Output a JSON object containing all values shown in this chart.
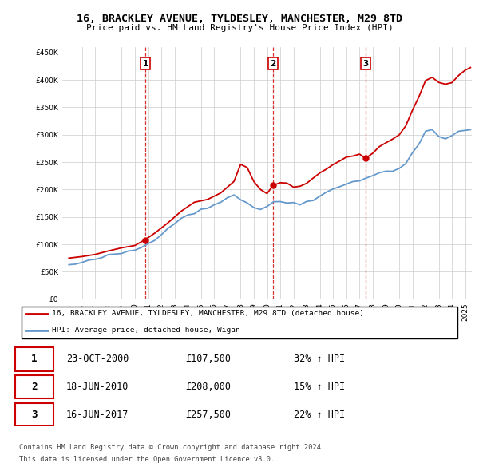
{
  "title": "16, BRACKLEY AVENUE, TYLDESLEY, MANCHESTER, M29 8TD",
  "subtitle": "Price paid vs. HM Land Registry's House Price Index (HPI)",
  "legend_line1": "16, BRACKLEY AVENUE, TYLDESLEY, MANCHESTER, M29 8TD (detached house)",
  "legend_line2": "HPI: Average price, detached house, Wigan",
  "transactions": [
    {
      "num": 1,
      "date": "23-OCT-2000",
      "price": 107500,
      "pct": "32%",
      "dir": "↑"
    },
    {
      "num": 2,
      "date": "18-JUN-2010",
      "price": 208000,
      "pct": "15%",
      "dir": "↑"
    },
    {
      "num": 3,
      "date": "16-JUN-2017",
      "price": 257500,
      "pct": "22%",
      "dir": "↑"
    }
  ],
  "footer1": "Contains HM Land Registry data © Crown copyright and database right 2024.",
  "footer2": "This data is licensed under the Open Government Licence v3.0.",
  "property_color": "#cc0000",
  "hpi_color": "#6699cc",
  "vline_color": "#cc0000",
  "background_color": "#ffffff",
  "ylim": [
    0,
    460000
  ],
  "yticks": [
    0,
    50000,
    100000,
    150000,
    200000,
    250000,
    300000,
    350000,
    400000,
    450000
  ],
  "xlim_start": 1994.5,
  "xlim_end": 2025.5,
  "hpi_x": [
    1995,
    1995.5,
    1996,
    1996.5,
    1997,
    1997.5,
    1998,
    1998.5,
    1999,
    1999.5,
    2000,
    2000.5,
    2001,
    2001.5,
    2002,
    2002.5,
    2003,
    2003.5,
    2004,
    2004.5,
    2005,
    2005.5,
    2006,
    2006.5,
    2007,
    2007.5,
    2008,
    2008.5,
    2009,
    2009.5,
    2010,
    2010.5,
    2011,
    2011.5,
    2012,
    2012.5,
    2013,
    2013.5,
    2014,
    2014.5,
    2015,
    2015.5,
    2016,
    2016.5,
    2017,
    2017.5,
    2018,
    2018.5,
    2019,
    2019.5,
    2020,
    2020.5,
    2021,
    2021.5,
    2022,
    2022.5,
    2023,
    2023.5,
    2024,
    2024.5,
    2025.4
  ],
  "hpi_y": [
    62000,
    64000,
    66000,
    69000,
    73000,
    76000,
    79000,
    81000,
    84000,
    87000,
    90000,
    95000,
    101000,
    110000,
    120000,
    130000,
    139000,
    147000,
    155000,
    158000,
    162000,
    166000,
    172000,
    179000,
    186000,
    190000,
    183000,
    175000,
    168000,
    164000,
    170000,
    175000,
    178000,
    177000,
    175000,
    174000,
    178000,
    183000,
    190000,
    195000,
    200000,
    205000,
    210000,
    215000,
    218000,
    222000,
    226000,
    229000,
    233000,
    236000,
    238000,
    248000,
    268000,
    282000,
    305000,
    308000,
    298000,
    293000,
    298000,
    305000,
    310000
  ],
  "prop_x": [
    1995.0,
    1996.0,
    1997.0,
    1998.0,
    1999.0,
    2000.0,
    2000.79,
    2001.5,
    2002.5,
    2003.5,
    2004.5,
    2005.5,
    2006.5,
    2007.5,
    2008.0,
    2008.5,
    2009.0,
    2009.5,
    2010.0,
    2010.46,
    2011.0,
    2011.5,
    2012.0,
    2012.5,
    2013.0,
    2013.5,
    2014.0,
    2014.5,
    2015.0,
    2015.5,
    2016.0,
    2016.5,
    2017.0,
    2017.46,
    2018.0,
    2018.5,
    2019.0,
    2019.5,
    2020.0,
    2020.5,
    2021.0,
    2021.5,
    2022.0,
    2022.5,
    2023.0,
    2023.5,
    2024.0,
    2024.5,
    2025.0,
    2025.4
  ],
  "prop_y": [
    75000,
    79000,
    83000,
    87000,
    92000,
    98000,
    107500,
    120000,
    140000,
    160000,
    175000,
    182000,
    192000,
    218000,
    245000,
    240000,
    215000,
    200000,
    195000,
    208000,
    212000,
    210000,
    205000,
    207000,
    212000,
    220000,
    230000,
    238000,
    245000,
    252000,
    258000,
    262000,
    265000,
    257500,
    268000,
    278000,
    285000,
    292000,
    300000,
    318000,
    345000,
    370000,
    400000,
    405000,
    395000,
    390000,
    395000,
    408000,
    418000,
    425000
  ]
}
